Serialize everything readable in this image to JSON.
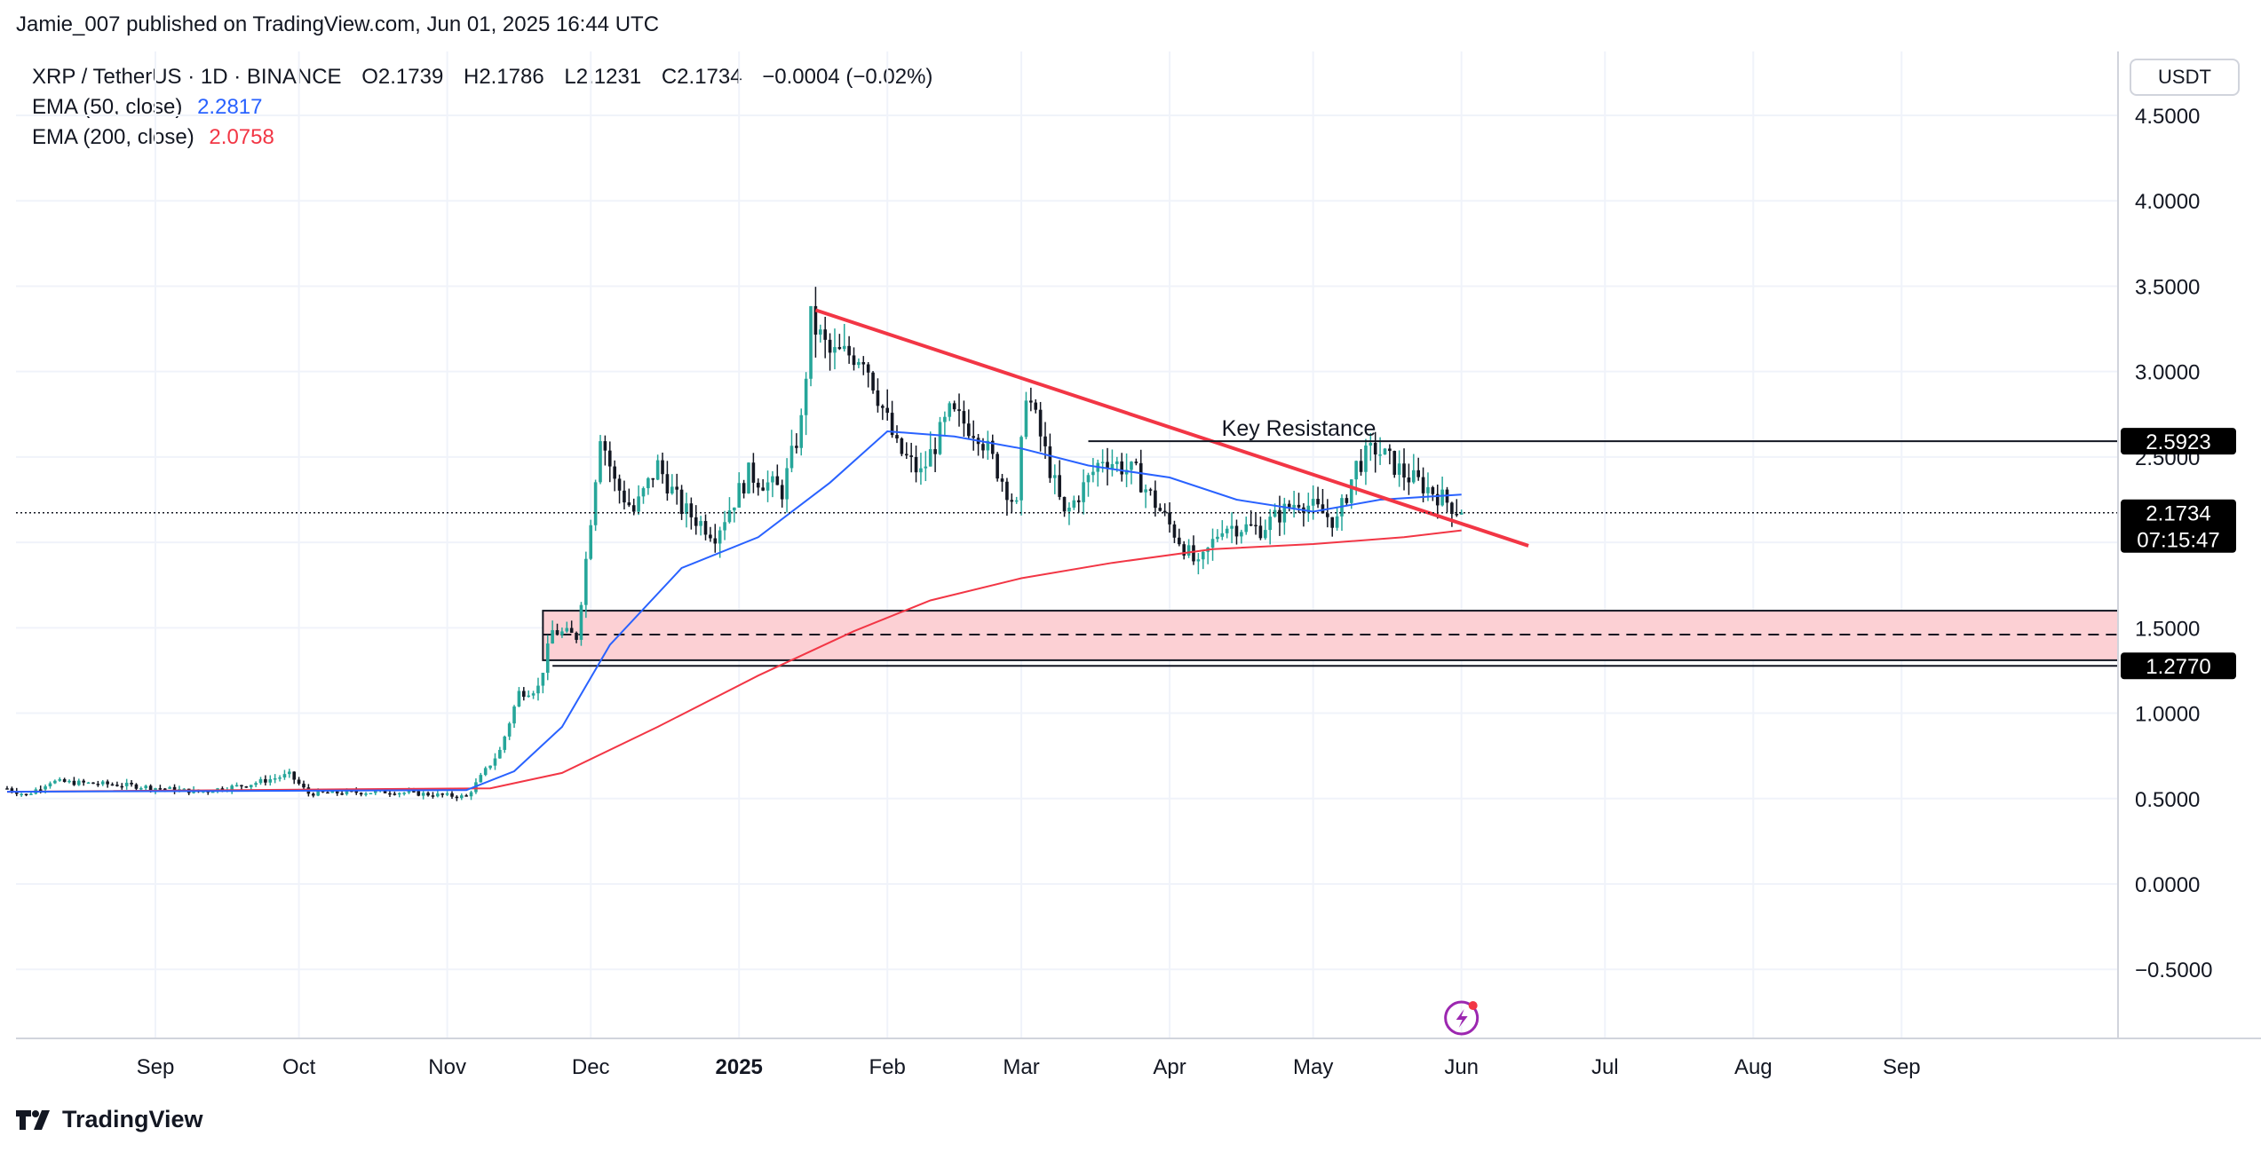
{
  "header": {
    "attribution": "Jamie_007 published on TradingView.com, Jun 01, 2025 16:44 UTC"
  },
  "legend": {
    "symbol": "XRP / TetherUS · 1D · BINANCE",
    "open": "O2.1739",
    "high": "H2.1786",
    "low": "L2.1231",
    "close": "C2.1734",
    "change": "−0.0004 (−0.02%)",
    "ema50_label": "EMA (50, close)",
    "ema50_value": "2.2817",
    "ema200_label": "EMA (200, close)",
    "ema200_value": "2.0758"
  },
  "currency_button": "USDT",
  "footer": {
    "brand": "TradingView"
  },
  "colors": {
    "up": "#26a69a",
    "down": "#131722",
    "ema50": "#2962ff",
    "ema200": "#f23645",
    "trendline": "#f23645",
    "zone_fill": "#fcd0d4"
  },
  "chart_data": {
    "type": "candlestick",
    "title": "XRP / TetherUS · 1D · BINANCE",
    "ylim": [
      -0.9,
      4.8
    ],
    "y_ticks": [
      "4.5000",
      "4.0000",
      "3.5000",
      "3.0000",
      "2.5000",
      "2.0000",
      "1.5000",
      "1.0000",
      "0.5000",
      "0.0000",
      "−0.5000"
    ],
    "x_ticks": [
      "Sep",
      "Oct",
      "Nov",
      "Dec",
      "2025",
      "Feb",
      "Mar",
      "Apr",
      "May",
      "Jun",
      "Jul",
      "Aug",
      "Sep"
    ],
    "price_labels": [
      {
        "value": "2.5923",
        "price": 2.5923
      },
      {
        "value": "2.1734",
        "price": 2.1734,
        "countdown": "07:15:47"
      },
      {
        "value": "1.2770",
        "price": 1.277
      }
    ],
    "annotations": {
      "key_resistance": {
        "text": "Key Resistance",
        "price": 2.5923
      },
      "trendline": {
        "from_date": "2025-01-17",
        "from_price": 3.36,
        "to_date": "2025-06-15",
        "to_price": 1.98
      },
      "support_zone": {
        "top": 1.6,
        "bottom": 1.31,
        "mid": 1.46,
        "floor": 1.277
      }
    },
    "price_series": [
      {
        "date": "2024-08-01",
        "price": 0.56
      },
      {
        "date": "2024-08-05",
        "price": 0.52
      },
      {
        "date": "2024-08-10",
        "price": 0.6
      },
      {
        "date": "2024-08-25",
        "price": 0.58
      },
      {
        "date": "2024-09-10",
        "price": 0.54
      },
      {
        "date": "2024-09-20",
        "price": 0.58
      },
      {
        "date": "2024-09-29",
        "price": 0.64
      },
      {
        "date": "2024-10-03",
        "price": 0.53
      },
      {
        "date": "2024-10-20",
        "price": 0.54
      },
      {
        "date": "2024-11-05",
        "price": 0.51
      },
      {
        "date": "2024-11-12",
        "price": 0.78
      },
      {
        "date": "2024-11-16",
        "price": 1.12
      },
      {
        "date": "2024-11-20",
        "price": 1.15
      },
      {
        "date": "2024-11-23",
        "price": 1.48
      },
      {
        "date": "2024-11-28",
        "price": 1.45
      },
      {
        "date": "2024-11-30",
        "price": 1.9
      },
      {
        "date": "2024-12-03",
        "price": 2.65
      },
      {
        "date": "2024-12-06",
        "price": 2.35
      },
      {
        "date": "2024-12-10",
        "price": 2.18
      },
      {
        "date": "2024-12-15",
        "price": 2.45
      },
      {
        "date": "2024-12-20",
        "price": 2.2
      },
      {
        "date": "2024-12-27",
        "price": 2.05
      },
      {
        "date": "2025-01-03",
        "price": 2.4
      },
      {
        "date": "2025-01-10",
        "price": 2.3
      },
      {
        "date": "2025-01-14",
        "price": 2.7
      },
      {
        "date": "2025-01-16",
        "price": 3.3
      },
      {
        "date": "2025-01-20",
        "price": 3.1
      },
      {
        "date": "2025-01-27",
        "price": 3.1
      },
      {
        "date": "2025-02-03",
        "price": 2.55
      },
      {
        "date": "2025-02-08",
        "price": 2.4
      },
      {
        "date": "2025-02-14",
        "price": 2.75
      },
      {
        "date": "2025-02-20",
        "price": 2.65
      },
      {
        "date": "2025-02-28",
        "price": 2.2
      },
      {
        "date": "2025-03-02",
        "price": 2.9
      },
      {
        "date": "2025-03-10",
        "price": 2.15
      },
      {
        "date": "2025-03-18",
        "price": 2.5
      },
      {
        "date": "2025-03-25",
        "price": 2.4
      },
      {
        "date": "2025-04-01",
        "price": 2.1
      },
      {
        "date": "2025-04-07",
        "price": 1.85
      },
      {
        "date": "2025-04-12",
        "price": 2.1
      },
      {
        "date": "2025-04-20",
        "price": 2.08
      },
      {
        "date": "2025-04-28",
        "price": 2.25
      },
      {
        "date": "2025-05-06",
        "price": 2.12
      },
      {
        "date": "2025-05-10",
        "price": 2.45
      },
      {
        "date": "2025-05-14",
        "price": 2.55
      },
      {
        "date": "2025-05-20",
        "price": 2.4
      },
      {
        "date": "2025-05-26",
        "price": 2.3
      },
      {
        "date": "2025-06-01",
        "price": 2.1734
      }
    ],
    "ema50_series": [
      {
        "date": "2024-08-01",
        "price": 0.54
      },
      {
        "date": "2024-11-05",
        "price": 0.55
      },
      {
        "date": "2024-11-15",
        "price": 0.66
      },
      {
        "date": "2024-11-25",
        "price": 0.92
      },
      {
        "date": "2024-12-05",
        "price": 1.4
      },
      {
        "date": "2024-12-20",
        "price": 1.85
      },
      {
        "date": "2025-01-05",
        "price": 2.03
      },
      {
        "date": "2025-01-20",
        "price": 2.35
      },
      {
        "date": "2025-02-01",
        "price": 2.65
      },
      {
        "date": "2025-02-15",
        "price": 2.62
      },
      {
        "date": "2025-03-01",
        "price": 2.55
      },
      {
        "date": "2025-03-15",
        "price": 2.45
      },
      {
        "date": "2025-04-01",
        "price": 2.38
      },
      {
        "date": "2025-04-15",
        "price": 2.25
      },
      {
        "date": "2025-05-01",
        "price": 2.18
      },
      {
        "date": "2025-05-15",
        "price": 2.25
      },
      {
        "date": "2025-06-01",
        "price": 2.28
      }
    ],
    "ema200_series": [
      {
        "date": "2024-08-01",
        "price": 0.54
      },
      {
        "date": "2024-11-10",
        "price": 0.56
      },
      {
        "date": "2024-11-25",
        "price": 0.65
      },
      {
        "date": "2024-12-15",
        "price": 0.92
      },
      {
        "date": "2025-01-05",
        "price": 1.22
      },
      {
        "date": "2025-01-25",
        "price": 1.48
      },
      {
        "date": "2025-02-10",
        "price": 1.66
      },
      {
        "date": "2025-03-01",
        "price": 1.79
      },
      {
        "date": "2025-03-20",
        "price": 1.88
      },
      {
        "date": "2025-04-10",
        "price": 1.96
      },
      {
        "date": "2025-05-01",
        "price": 1.99
      },
      {
        "date": "2025-05-20",
        "price": 2.03
      },
      {
        "date": "2025-06-01",
        "price": 2.07
      }
    ]
  }
}
